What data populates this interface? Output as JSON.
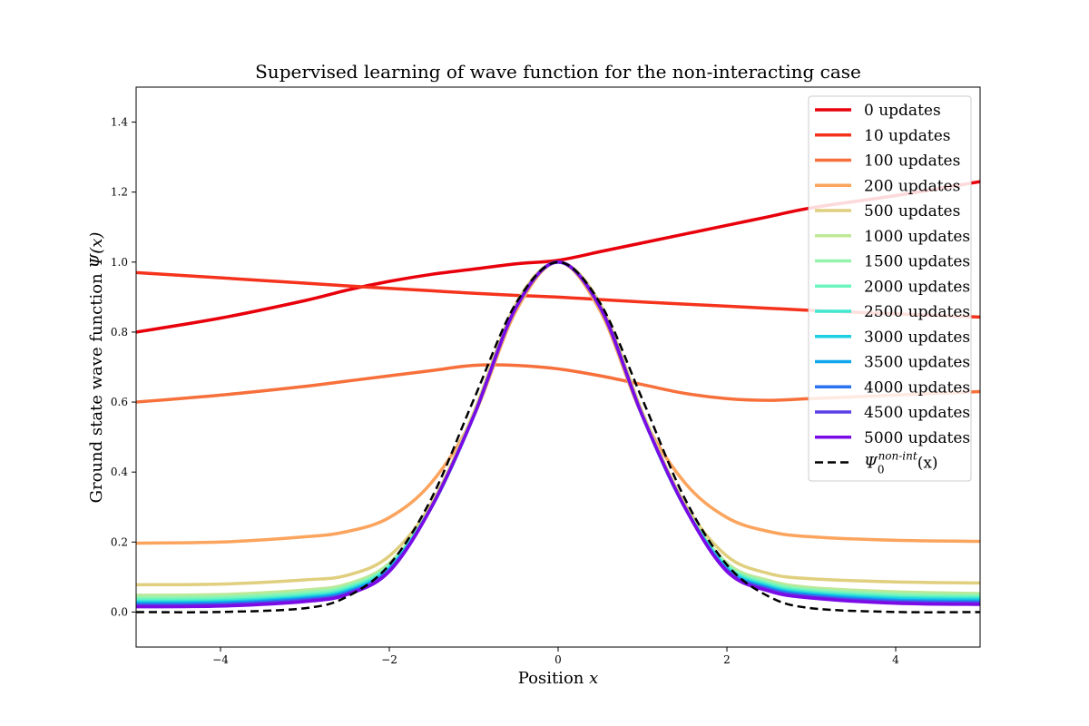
{
  "chart_data": {
    "type": "line",
    "title": "Supervised learning of wave function for the non-interacting case",
    "xlabel": "Position",
    "xlabel_var": "x",
    "ylabel": "Ground state wave function",
    "ylabel_math": "Ψ(x)",
    "xlim": [
      -5,
      5
    ],
    "ylim": [
      -0.1,
      1.5
    ],
    "xticks": [
      -4,
      -2,
      0,
      2,
      4
    ],
    "xtick_labels": [
      "−4",
      "−2",
      "0",
      "2",
      "4"
    ],
    "yticks": [
      0.0,
      0.2,
      0.4,
      0.6,
      0.8,
      1.0,
      1.2,
      1.4
    ],
    "ytick_labels": [
      "0.0",
      "0.2",
      "0.4",
      "0.6",
      "0.8",
      "1.0",
      "1.2",
      "1.4"
    ],
    "grid": false,
    "legend_position": "top-right",
    "x": [
      -5,
      -4,
      -3,
      -2.5,
      -2,
      -1.5,
      -1,
      -0.5,
      0,
      0.5,
      1,
      1.5,
      2,
      2.5,
      3,
      4,
      5
    ],
    "series": [
      {
        "name": "0 updates",
        "color": "#e8000b",
        "dashed": false,
        "values": [
          0.8,
          0.84,
          0.89,
          0.92,
          0.945,
          0.965,
          0.98,
          0.995,
          1.005,
          1.03,
          1.055,
          1.08,
          1.105,
          1.13,
          1.155,
          1.19,
          1.23
        ]
      },
      {
        "name": "10 updates",
        "color": "#f5331c",
        "dashed": false,
        "values": [
          0.97,
          0.955,
          0.94,
          0.932,
          0.925,
          0.918,
          0.911,
          0.905,
          0.9,
          0.893,
          0.886,
          0.88,
          0.874,
          0.868,
          0.862,
          0.852,
          0.843
        ]
      },
      {
        "name": "100 updates",
        "color": "#f7703b",
        "dashed": false,
        "values": [
          0.6,
          0.62,
          0.645,
          0.66,
          0.675,
          0.69,
          0.705,
          0.705,
          0.695,
          0.675,
          0.65,
          0.625,
          0.61,
          0.605,
          0.61,
          0.62,
          0.63
        ]
      },
      {
        "name": "200 updates",
        "color": "#fba45d",
        "dashed": false,
        "values": [
          0.197,
          0.2,
          0.215,
          0.23,
          0.27,
          0.37,
          0.56,
          0.86,
          1.0,
          0.86,
          0.56,
          0.37,
          0.27,
          0.23,
          0.215,
          0.205,
          0.202
        ]
      },
      {
        "name": "500 updates",
        "color": "#dfcf7e",
        "dashed": false,
        "values": [
          0.078,
          0.08,
          0.092,
          0.105,
          0.16,
          0.31,
          0.57,
          0.88,
          1.0,
          0.88,
          0.57,
          0.31,
          0.16,
          0.11,
          0.095,
          0.086,
          0.083
        ]
      },
      {
        "name": "1000 updates",
        "color": "#bfe898",
        "dashed": false,
        "values": [
          0.048,
          0.05,
          0.063,
          0.08,
          0.14,
          0.3,
          0.56,
          0.87,
          1.0,
          0.87,
          0.56,
          0.3,
          0.14,
          0.09,
          0.07,
          0.058,
          0.053
        ]
      },
      {
        "name": "1500 updates",
        "color": "#96f3ae",
        "dashed": false,
        "values": [
          0.042,
          0.044,
          0.057,
          0.075,
          0.135,
          0.3,
          0.56,
          0.87,
          1.0,
          0.87,
          0.56,
          0.3,
          0.135,
          0.085,
          0.065,
          0.052,
          0.048
        ]
      },
      {
        "name": "2000 updates",
        "color": "#6df5c0",
        "dashed": false,
        "values": [
          0.036,
          0.038,
          0.051,
          0.07,
          0.132,
          0.3,
          0.56,
          0.87,
          1.0,
          0.87,
          0.56,
          0.3,
          0.132,
          0.08,
          0.06,
          0.046,
          0.043
        ]
      },
      {
        "name": "2500 updates",
        "color": "#40e8d0",
        "dashed": false,
        "values": [
          0.031,
          0.033,
          0.046,
          0.065,
          0.128,
          0.3,
          0.56,
          0.87,
          1.0,
          0.87,
          0.56,
          0.3,
          0.128,
          0.076,
          0.056,
          0.042,
          0.039
        ]
      },
      {
        "name": "3000 updates",
        "color": "#1dcfe3",
        "dashed": false,
        "values": [
          0.027,
          0.029,
          0.042,
          0.061,
          0.125,
          0.3,
          0.56,
          0.87,
          1.0,
          0.87,
          0.56,
          0.3,
          0.125,
          0.072,
          0.052,
          0.038,
          0.035
        ]
      },
      {
        "name": "3500 updates",
        "color": "#10a6ec",
        "dashed": false,
        "values": [
          0.024,
          0.026,
          0.039,
          0.058,
          0.122,
          0.3,
          0.56,
          0.87,
          1.0,
          0.87,
          0.56,
          0.3,
          0.122,
          0.069,
          0.049,
          0.034,
          0.031
        ]
      },
      {
        "name": "4000 updates",
        "color": "#2b73ef",
        "dashed": false,
        "values": [
          0.021,
          0.023,
          0.036,
          0.055,
          0.12,
          0.3,
          0.56,
          0.87,
          1.0,
          0.87,
          0.56,
          0.3,
          0.12,
          0.066,
          0.046,
          0.031,
          0.028
        ]
      },
      {
        "name": "4500 updates",
        "color": "#5b3fe6",
        "dashed": false,
        "values": [
          0.018,
          0.02,
          0.033,
          0.052,
          0.118,
          0.3,
          0.56,
          0.87,
          1.0,
          0.87,
          0.56,
          0.3,
          0.118,
          0.063,
          0.043,
          0.028,
          0.025
        ]
      },
      {
        "name": "5000 updates",
        "color": "#7a0be6",
        "dashed": false,
        "values": [
          0.015,
          0.017,
          0.03,
          0.05,
          0.116,
          0.3,
          0.56,
          0.87,
          1.0,
          0.87,
          0.56,
          0.3,
          0.116,
          0.06,
          0.04,
          0.025,
          0.022
        ]
      },
      {
        "name": "Ψ0non-int(x)",
        "color": "#000000",
        "dashed": true,
        "values": [
          0.0,
          0.0002,
          0.011,
          0.044,
          0.135,
          0.325,
          0.607,
          0.882,
          1.0,
          0.882,
          0.607,
          0.325,
          0.135,
          0.044,
          0.011,
          0.0002,
          0.0
        ]
      }
    ]
  }
}
